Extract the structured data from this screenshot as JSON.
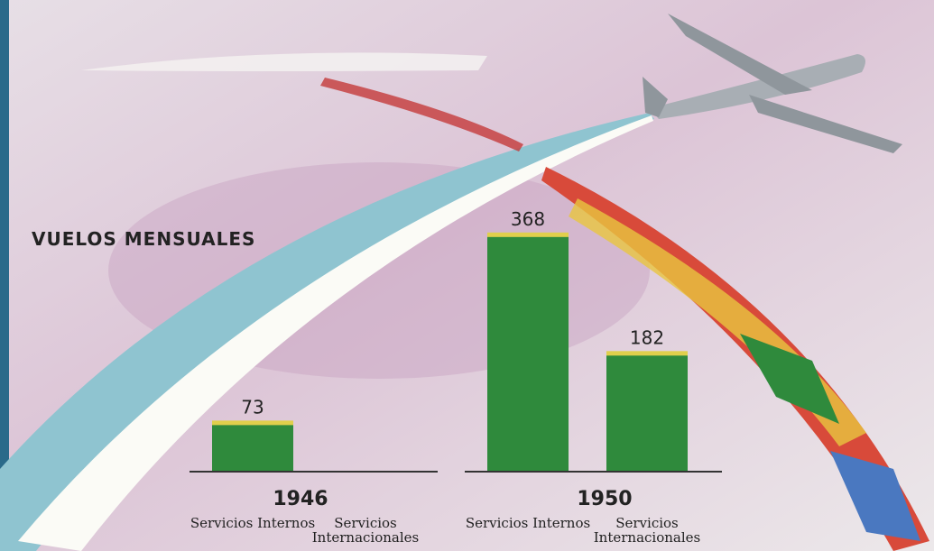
{
  "chart_data": {
    "type": "bar",
    "title": "VUELOS MENSUALES",
    "groups": [
      {
        "name": "1946",
        "categories": [
          "Servicios Internos",
          "Servicios Internacionales"
        ],
        "values": [
          73,
          null
        ]
      },
      {
        "name": "1950",
        "categories": [
          "Servicios Internos",
          "Servicios Internacionales"
        ],
        "values": [
          368,
          182
        ]
      }
    ],
    "color": "#2f8a3c"
  }
}
